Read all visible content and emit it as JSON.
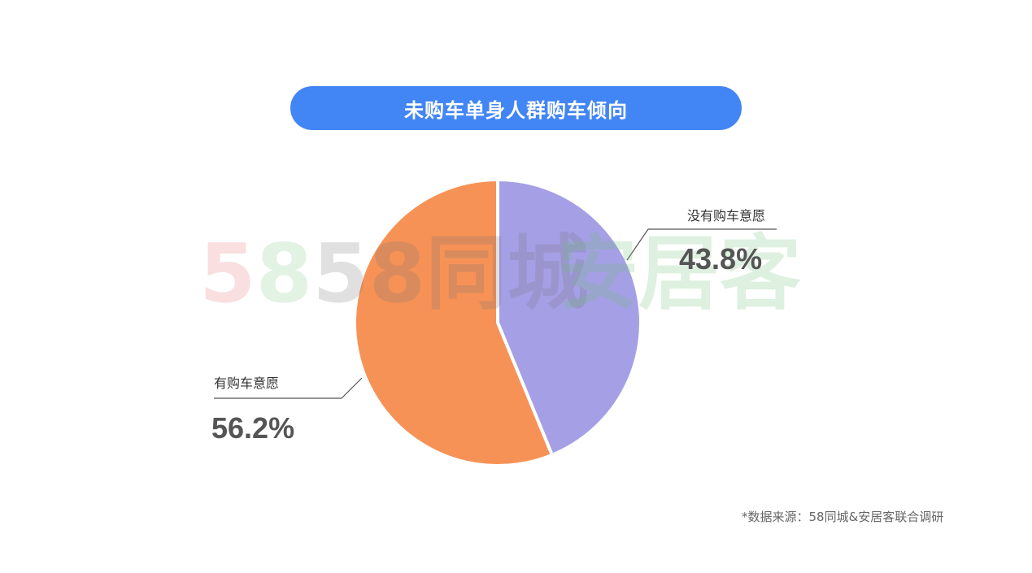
{
  "chart_data": {
    "type": "pie",
    "title": "未购车单身人群购车倾向",
    "slices": [
      {
        "label": "没有购车意愿",
        "value": 43.8,
        "display": "43.8%",
        "color": "#a5a0e6"
      },
      {
        "label": "有购车意愿",
        "value": 56.2,
        "display": "56.2%",
        "color": "#f79256"
      }
    ],
    "start_angle": "top",
    "direction": "clockwise"
  },
  "watermark": {
    "left": "58同城",
    "right": "安居客"
  },
  "source": "*数据来源：58同城&安居客联合调研"
}
